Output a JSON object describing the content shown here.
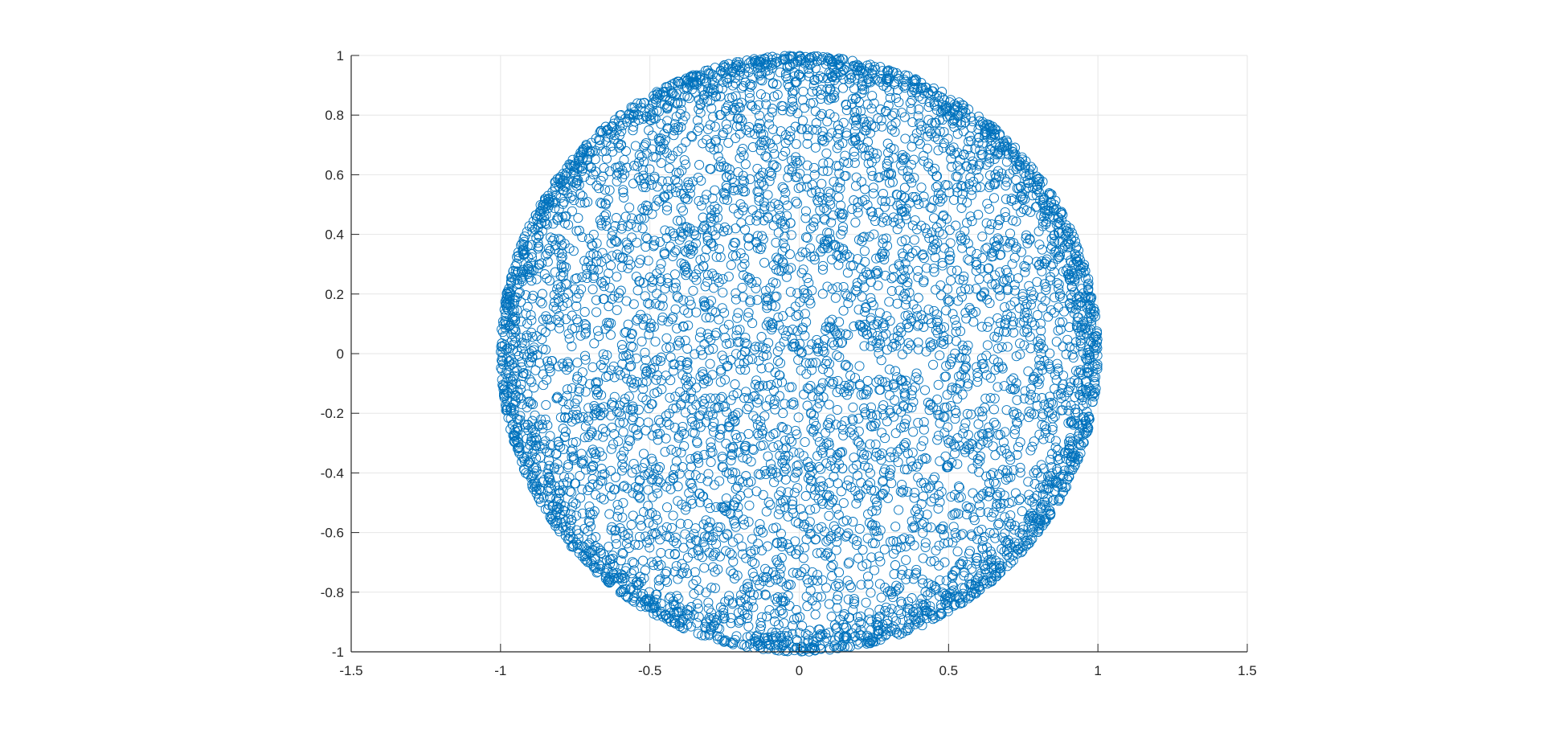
{
  "chart_data": {
    "type": "scatter",
    "title": "",
    "xlabel": "",
    "ylabel": "",
    "xlim": [
      -1.5,
      1.5
    ],
    "ylim": [
      -1,
      1
    ],
    "xticks": [
      -1.5,
      -1,
      -0.5,
      0,
      0.5,
      1,
      1.5
    ],
    "xtick_labels": [
      "-1.5",
      "-1",
      "-0.5",
      "0",
      "0.5",
      "1",
      "1.5"
    ],
    "yticks": [
      -1,
      -0.8,
      -0.6,
      -0.4,
      -0.2,
      0,
      0.2,
      0.4,
      0.6,
      0.8,
      1
    ],
    "ytick_labels": [
      "-1",
      "-0.8",
      "-0.6",
      "-0.4",
      "-0.2",
      "0",
      "0.2",
      "0.4",
      "0.6",
      "0.8",
      "1"
    ],
    "grid": true,
    "marker": "open-circle",
    "marker_color": "#0072BD",
    "grid_color": "#e6e6e6",
    "axis_color": "#262626",
    "series": [
      {
        "distribution": "points uniformly spread inside unit circle, denser toward circle boundary",
        "center": [
          0,
          0
        ],
        "radius": 1,
        "count": 6000
      }
    ]
  }
}
